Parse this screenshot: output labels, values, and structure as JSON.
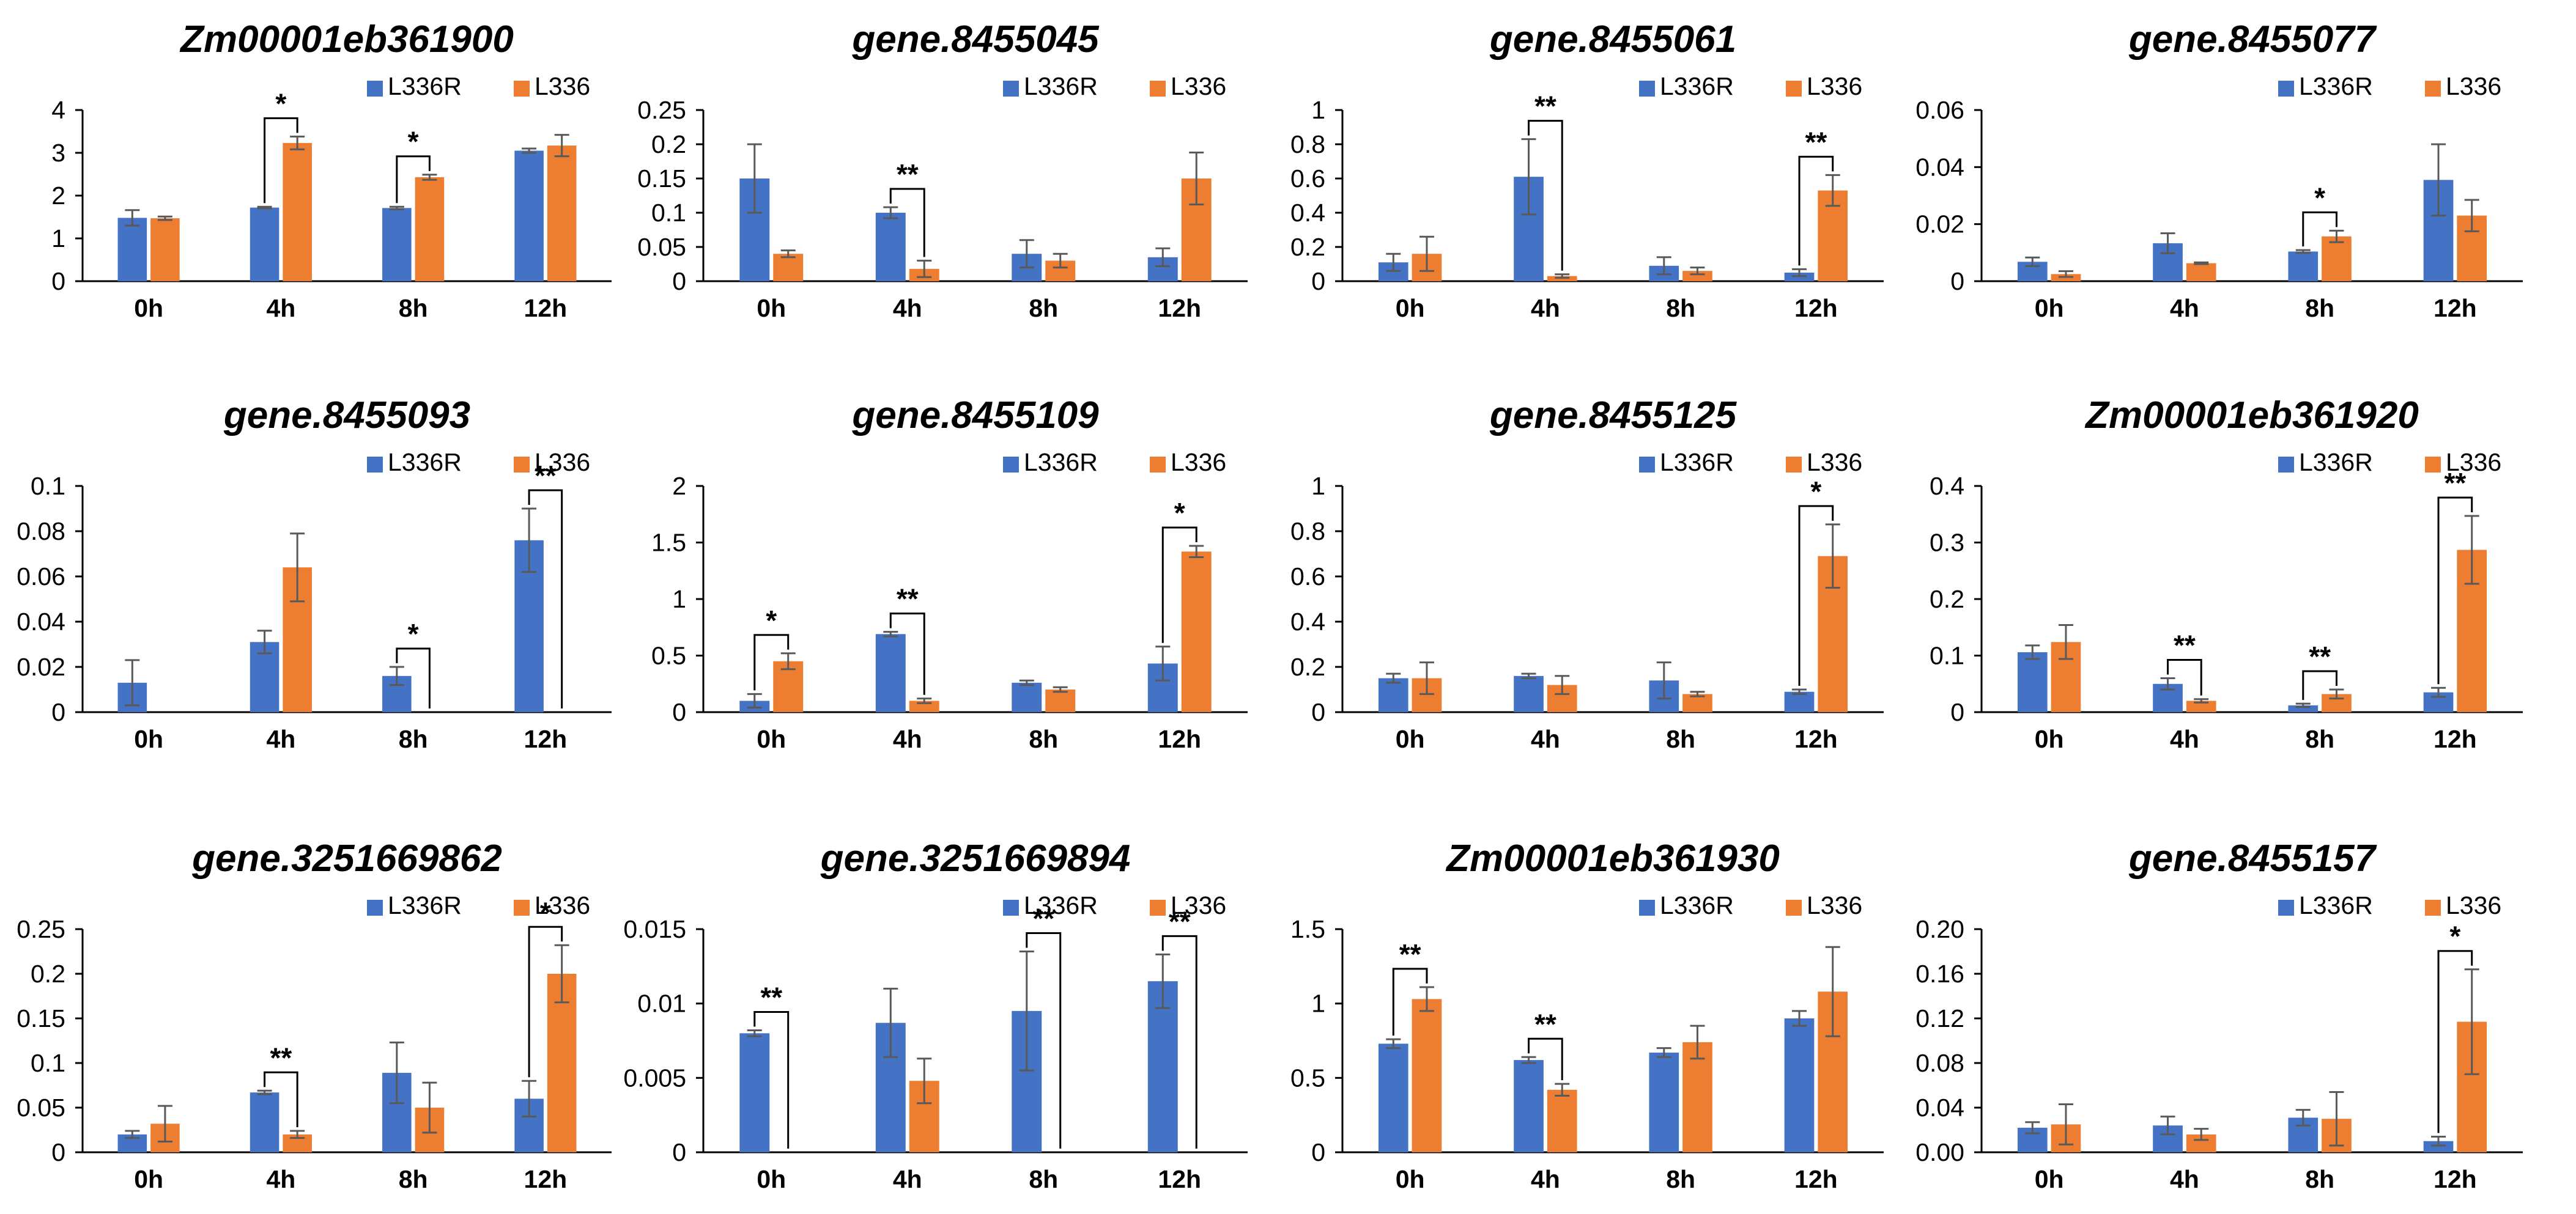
{
  "colors": {
    "L336R": "#4472C4",
    "L336": "#ED7D31",
    "axis": "#000000",
    "errbar": "#595959"
  },
  "chart_data": [
    {
      "type": "bar",
      "title": "Zm00001eb361900",
      "categories": [
        "0h",
        "4h",
        "8h",
        "12h"
      ],
      "series": [
        {
          "name": "L336R",
          "values": [
            1.48,
            1.72,
            1.71,
            3.05
          ],
          "errors": [
            0.18,
            0.02,
            0.03,
            0.05
          ]
        },
        {
          "name": "L336",
          "values": [
            1.47,
            3.23,
            2.43,
            3.17
          ],
          "errors": [
            0.04,
            0.15,
            0.06,
            0.25
          ]
        }
      ],
      "ylim": [
        0,
        4
      ],
      "yticks": [
        "0",
        "1",
        "2",
        "3",
        "4"
      ],
      "significance": [
        {
          "category": "4h",
          "label": "*"
        },
        {
          "category": "8h",
          "label": "*"
        }
      ]
    },
    {
      "type": "bar",
      "title": "gene.8455045",
      "categories": [
        "0h",
        "4h",
        "8h",
        "12h"
      ],
      "series": [
        {
          "name": "L336R",
          "values": [
            0.15,
            0.1,
            0.04,
            0.035
          ],
          "errors": [
            0.05,
            0.008,
            0.02,
            0.013
          ]
        },
        {
          "name": "L336",
          "values": [
            0.04,
            0.018,
            0.03,
            0.15
          ],
          "errors": [
            0.005,
            0.012,
            0.01,
            0.038
          ]
        }
      ],
      "ylim": [
        0,
        0.25
      ],
      "yticks": [
        "0",
        "0.05",
        "0.1",
        "0.15",
        "0.2",
        "0.25"
      ],
      "significance": [
        {
          "category": "4h",
          "label": "**"
        }
      ]
    },
    {
      "type": "bar",
      "title": "gene.8455061",
      "categories": [
        "0h",
        "4h",
        "8h",
        "12h"
      ],
      "series": [
        {
          "name": "L336R",
          "values": [
            0.11,
            0.61,
            0.09,
            0.05
          ],
          "errors": [
            0.05,
            0.22,
            0.05,
            0.02
          ]
        },
        {
          "name": "L336",
          "values": [
            0.16,
            0.03,
            0.06,
            0.53
          ],
          "errors": [
            0.1,
            0.01,
            0.02,
            0.09
          ]
        }
      ],
      "ylim": [
        0,
        1
      ],
      "yticks": [
        "0",
        "0.2",
        "0.4",
        "0.6",
        "0.8",
        "1"
      ],
      "significance": [
        {
          "category": "4h",
          "label": "**"
        },
        {
          "category": "12h",
          "label": "**"
        }
      ]
    },
    {
      "type": "bar",
      "title": "gene.8455077",
      "categories": [
        "0h",
        "4h",
        "8h",
        "12h"
      ],
      "series": [
        {
          "name": "L336R",
          "values": [
            0.0068,
            0.0133,
            0.0104,
            0.0355
          ],
          "errors": [
            0.0015,
            0.0035,
            0.0005,
            0.0125
          ]
        },
        {
          "name": "L336",
          "values": [
            0.0025,
            0.0063,
            0.0157,
            0.023
          ],
          "errors": [
            0.001,
            0.0003,
            0.002,
            0.0055
          ]
        }
      ],
      "ylim": [
        0,
        0.06
      ],
      "yticks": [
        "0",
        "0.02",
        "0.04",
        "0.06"
      ],
      "significance": [
        {
          "category": "8h",
          "label": "*"
        }
      ]
    },
    {
      "type": "bar",
      "title": "gene.8455093",
      "categories": [
        "0h",
        "4h",
        "8h",
        "12h"
      ],
      "series": [
        {
          "name": "L336R",
          "values": [
            0.013,
            0.031,
            0.016,
            0.076
          ],
          "errors": [
            0.01,
            0.005,
            0.004,
            0.014
          ]
        },
        {
          "name": "L336",
          "values": [
            0,
            0.064,
            0,
            0
          ],
          "errors": [
            0,
            0.015,
            0,
            0
          ]
        }
      ],
      "ylim": [
        0,
        0.1
      ],
      "yticks": [
        "0",
        "0.02",
        "0.04",
        "0.06",
        "0.08",
        "0.1"
      ],
      "significance": [
        {
          "category": "8h",
          "label": "*"
        },
        {
          "category": "12h",
          "label": "**"
        }
      ]
    },
    {
      "type": "bar",
      "title": "gene.8455109",
      "categories": [
        "0h",
        "4h",
        "8h",
        "12h"
      ],
      "series": [
        {
          "name": "L336R",
          "values": [
            0.1,
            0.69,
            0.26,
            0.43
          ],
          "errors": [
            0.06,
            0.02,
            0.02,
            0.15
          ]
        },
        {
          "name": "L336",
          "values": [
            0.45,
            0.1,
            0.2,
            1.42
          ],
          "errors": [
            0.07,
            0.02,
            0.02,
            0.05
          ]
        }
      ],
      "ylim": [
        0,
        2
      ],
      "yticks": [
        "0",
        "0.5",
        "1",
        "1.5",
        "2"
      ],
      "significance": [
        {
          "category": "0h",
          "label": "*"
        },
        {
          "category": "4h",
          "label": "**"
        },
        {
          "category": "12h",
          "label": "*"
        }
      ]
    },
    {
      "type": "bar",
      "title": "gene.8455125",
      "categories": [
        "0h",
        "4h",
        "8h",
        "12h"
      ],
      "series": [
        {
          "name": "L336R",
          "values": [
            0.15,
            0.16,
            0.14,
            0.09
          ],
          "errors": [
            0.02,
            0.01,
            0.08,
            0.01
          ]
        },
        {
          "name": "L336",
          "values": [
            0.15,
            0.12,
            0.08,
            0.69
          ],
          "errors": [
            0.07,
            0.04,
            0.01,
            0.14
          ]
        }
      ],
      "ylim": [
        0,
        1
      ],
      "yticks": [
        "0",
        "0.2",
        "0.4",
        "0.6",
        "0.8",
        "1"
      ],
      "significance": [
        {
          "category": "12h",
          "label": "*"
        }
      ]
    },
    {
      "type": "bar",
      "title": "Zm00001eb361920",
      "categories": [
        "0h",
        "4h",
        "8h",
        "12h"
      ],
      "series": [
        {
          "name": "L336R",
          "values": [
            0.106,
            0.05,
            0.012,
            0.035
          ],
          "errors": [
            0.012,
            0.01,
            0.003,
            0.008
          ]
        },
        {
          "name": "L336",
          "values": [
            0.124,
            0.02,
            0.032,
            0.287
          ],
          "errors": [
            0.03,
            0.003,
            0.008,
            0.06
          ]
        }
      ],
      "ylim": [
        0,
        0.4
      ],
      "yticks": [
        "0",
        "0.1",
        "0.2",
        "0.3",
        "0.4"
      ],
      "significance": [
        {
          "category": "4h",
          "label": "**"
        },
        {
          "category": "8h",
          "label": "**"
        },
        {
          "category": "12h",
          "label": "**"
        }
      ]
    },
    {
      "type": "bar",
      "title": "gene.3251669862",
      "categories": [
        "0h",
        "4h",
        "8h",
        "12h"
      ],
      "series": [
        {
          "name": "L336R",
          "values": [
            0.02,
            0.067,
            0.089,
            0.06
          ],
          "errors": [
            0.004,
            0.002,
            0.034,
            0.02
          ]
        },
        {
          "name": "L336",
          "values": [
            0.032,
            0.02,
            0.05,
            0.2
          ],
          "errors": [
            0.02,
            0.004,
            0.028,
            0.032
          ]
        }
      ],
      "ylim": [
        0,
        0.25
      ],
      "yticks": [
        "0",
        "0.05",
        "0.1",
        "0.15",
        "0.2",
        "0.25"
      ],
      "significance": [
        {
          "category": "4h",
          "label": "**"
        },
        {
          "category": "12h",
          "label": "*"
        }
      ]
    },
    {
      "type": "bar",
      "title": "gene.3251669894",
      "categories": [
        "0h",
        "4h",
        "8h",
        "12h"
      ],
      "series": [
        {
          "name": "L336R",
          "values": [
            0.008,
            0.0087,
            0.0095,
            0.0115
          ],
          "errors": [
            0.0002,
            0.0023,
            0.004,
            0.0018
          ]
        },
        {
          "name": "L336",
          "values": [
            0,
            0.0048,
            0,
            0
          ],
          "errors": [
            0,
            0.0015,
            0,
            0
          ]
        }
      ],
      "ylim": [
        0,
        0.015
      ],
      "yticks": [
        "0",
        "0.005",
        "0.01",
        "0.015"
      ],
      "significance": [
        {
          "category": "0h",
          "label": "**"
        },
        {
          "category": "8h",
          "label": "**"
        },
        {
          "category": "12h",
          "label": "**"
        }
      ]
    },
    {
      "type": "bar",
      "title": "Zm00001eb361930",
      "categories": [
        "0h",
        "4h",
        "8h",
        "12h"
      ],
      "series": [
        {
          "name": "L336R",
          "values": [
            0.73,
            0.62,
            0.67,
            0.9
          ],
          "errors": [
            0.03,
            0.02,
            0.03,
            0.05
          ]
        },
        {
          "name": "L336",
          "values": [
            1.03,
            0.42,
            0.74,
            1.08
          ],
          "errors": [
            0.08,
            0.04,
            0.11,
            0.3
          ]
        }
      ],
      "ylim": [
        0,
        1.5
      ],
      "yticks": [
        "0",
        "0.5",
        "1",
        "1.5"
      ],
      "significance": [
        {
          "category": "0h",
          "label": "**"
        },
        {
          "category": "4h",
          "label": "**"
        }
      ]
    },
    {
      "type": "bar",
      "title": "gene.8455157",
      "categories": [
        "0h",
        "4h",
        "8h",
        "12h"
      ],
      "series": [
        {
          "name": "L336R",
          "values": [
            0.022,
            0.024,
            0.031,
            0.01
          ],
          "errors": [
            0.005,
            0.008,
            0.007,
            0.004
          ]
        },
        {
          "name": "L336",
          "values": [
            0.025,
            0.016,
            0.03,
            0.117
          ],
          "errors": [
            0.018,
            0.005,
            0.024,
            0.047
          ]
        }
      ],
      "ylim": [
        0,
        0.2
      ],
      "yticks": [
        "0.00",
        "0.04",
        "0.08",
        "0.12",
        "0.16",
        "0.20"
      ],
      "significance": [
        {
          "category": "12h",
          "label": "*"
        }
      ]
    }
  ]
}
